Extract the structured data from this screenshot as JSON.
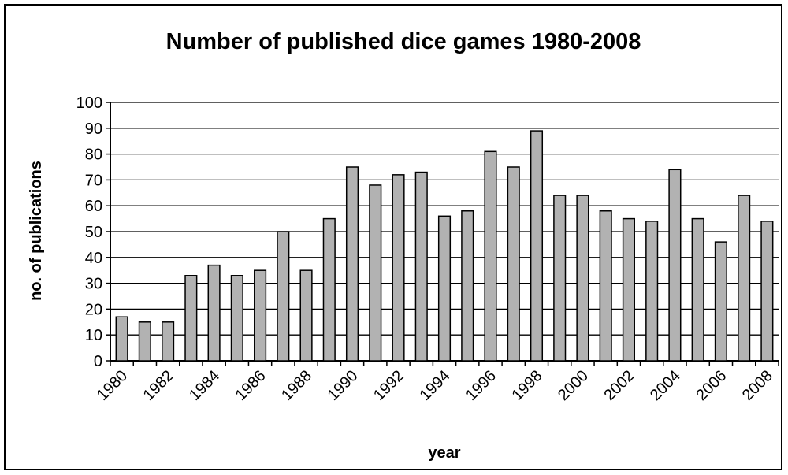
{
  "chart_data": {
    "type": "bar",
    "title": "Number of published dice games 1980-2008",
    "xlabel": "year",
    "ylabel": "no. of publications",
    "ylim": [
      0,
      100
    ],
    "yticks": [
      0,
      10,
      20,
      30,
      40,
      50,
      60,
      70,
      80,
      90,
      100
    ],
    "categories": [
      "1980",
      "1981",
      "1982",
      "1983",
      "1984",
      "1985",
      "1986",
      "1987",
      "1988",
      "1989",
      "1990",
      "1991",
      "1992",
      "1993",
      "1994",
      "1995",
      "1996",
      "1997",
      "1998",
      "1999",
      "2000",
      "2001",
      "2002",
      "2003",
      "2004",
      "2005",
      "2006",
      "2007",
      "2008"
    ],
    "xtick_labels": [
      "1980",
      "1982",
      "1984",
      "1986",
      "1988",
      "1990",
      "1992",
      "1994",
      "1996",
      "1998",
      "2000",
      "2002",
      "2004",
      "2006",
      "2008"
    ],
    "values": [
      17,
      15,
      15,
      33,
      37,
      33,
      35,
      50,
      35,
      55,
      75,
      68,
      72,
      73,
      56,
      58,
      81,
      75,
      89,
      64,
      64,
      58,
      55,
      54,
      74,
      55,
      46,
      64,
      54
    ],
    "grid": true,
    "legend": "none",
    "colors": {
      "bar": "#b2b2b2",
      "bar_stroke": "#000000",
      "plot_bg": "#ffffff",
      "grid": "#000000"
    }
  }
}
